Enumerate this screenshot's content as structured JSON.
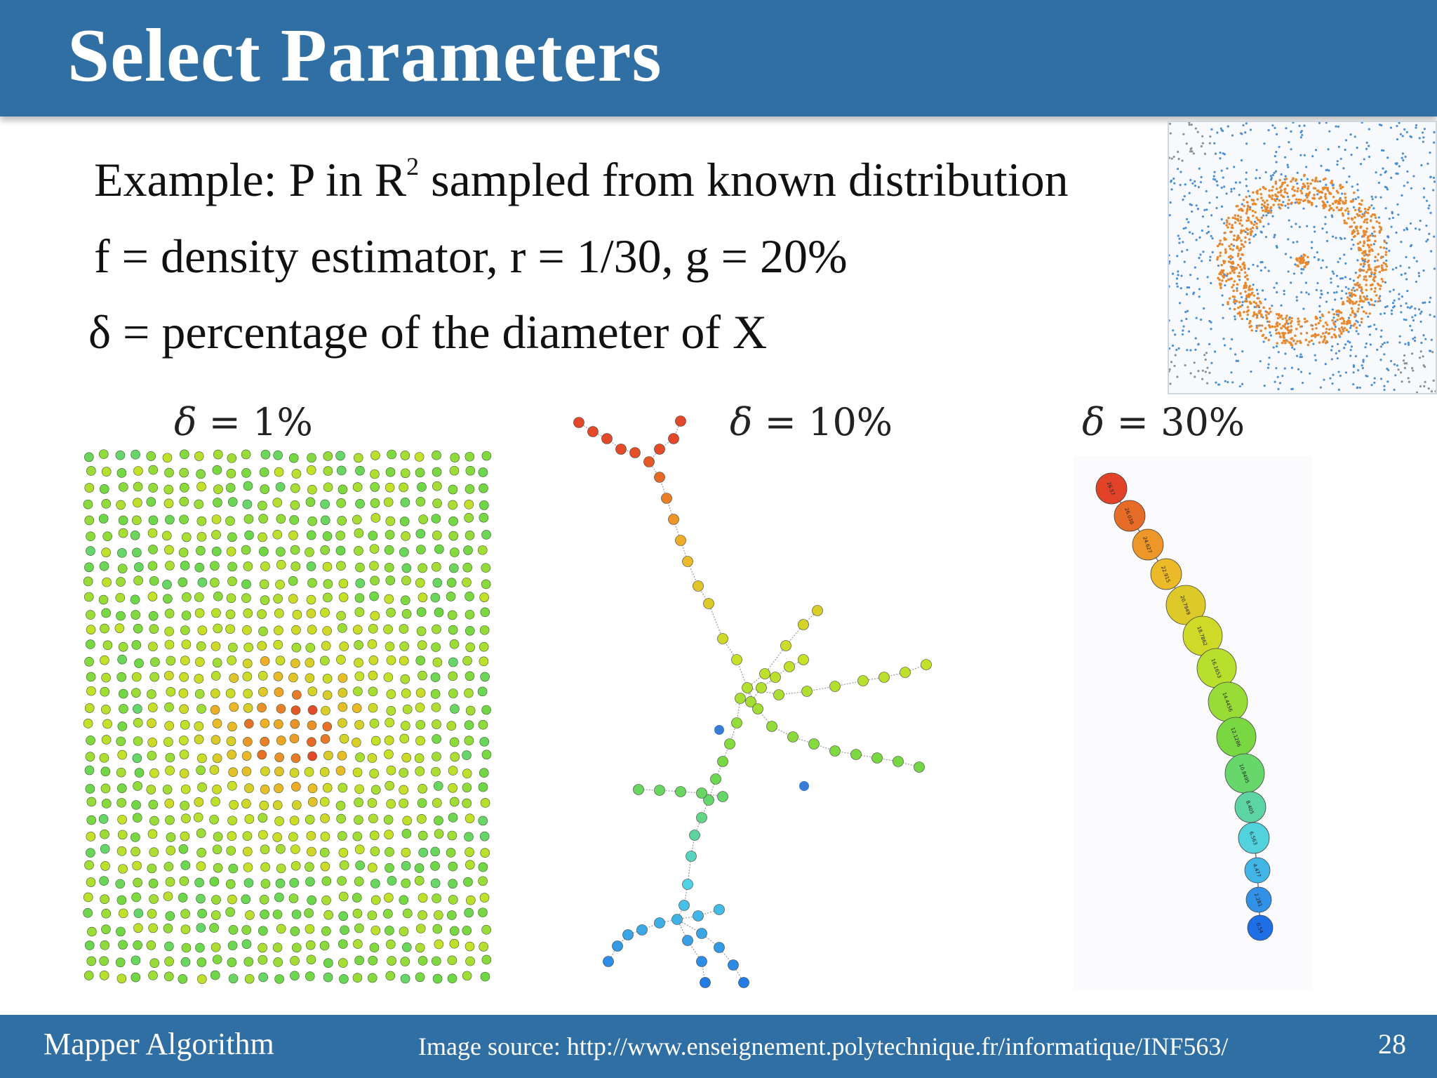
{
  "slide": {
    "title": "Select Parameters",
    "bullets": {
      "line1_pre": "Example: P in R",
      "line1_sup": "2",
      "line1_post": " sampled from known distribution",
      "line2": "f = density estimator, r = 1/30, g = 20%",
      "line3": "δ = percentage of the diameter of X"
    },
    "panels": [
      {
        "symbol": "δ",
        "label": " = 1%"
      },
      {
        "symbol": "δ",
        "label": " = 10%"
      },
      {
        "symbol": "δ",
        "label": " = 30%"
      }
    ],
    "chain_node_labels": [
      "26.57",
      "26.038",
      "24.627",
      "22.915",
      "20.7949",
      "18.7862",
      "16.1653",
      "14.4456",
      "12.1286",
      "10.8495",
      "8.405",
      "6.563",
      "4.477",
      "2.281",
      "0.54"
    ]
  },
  "footer": {
    "left": "Mapper Algorithm",
    "source": "Image source: http://www.enseignement.polytechnique.fr/informatique/INF563/",
    "page": "28"
  },
  "colors": {
    "bar": "#2f6fa3",
    "ring": "#e8892f",
    "points": "#4a8fd4"
  }
}
